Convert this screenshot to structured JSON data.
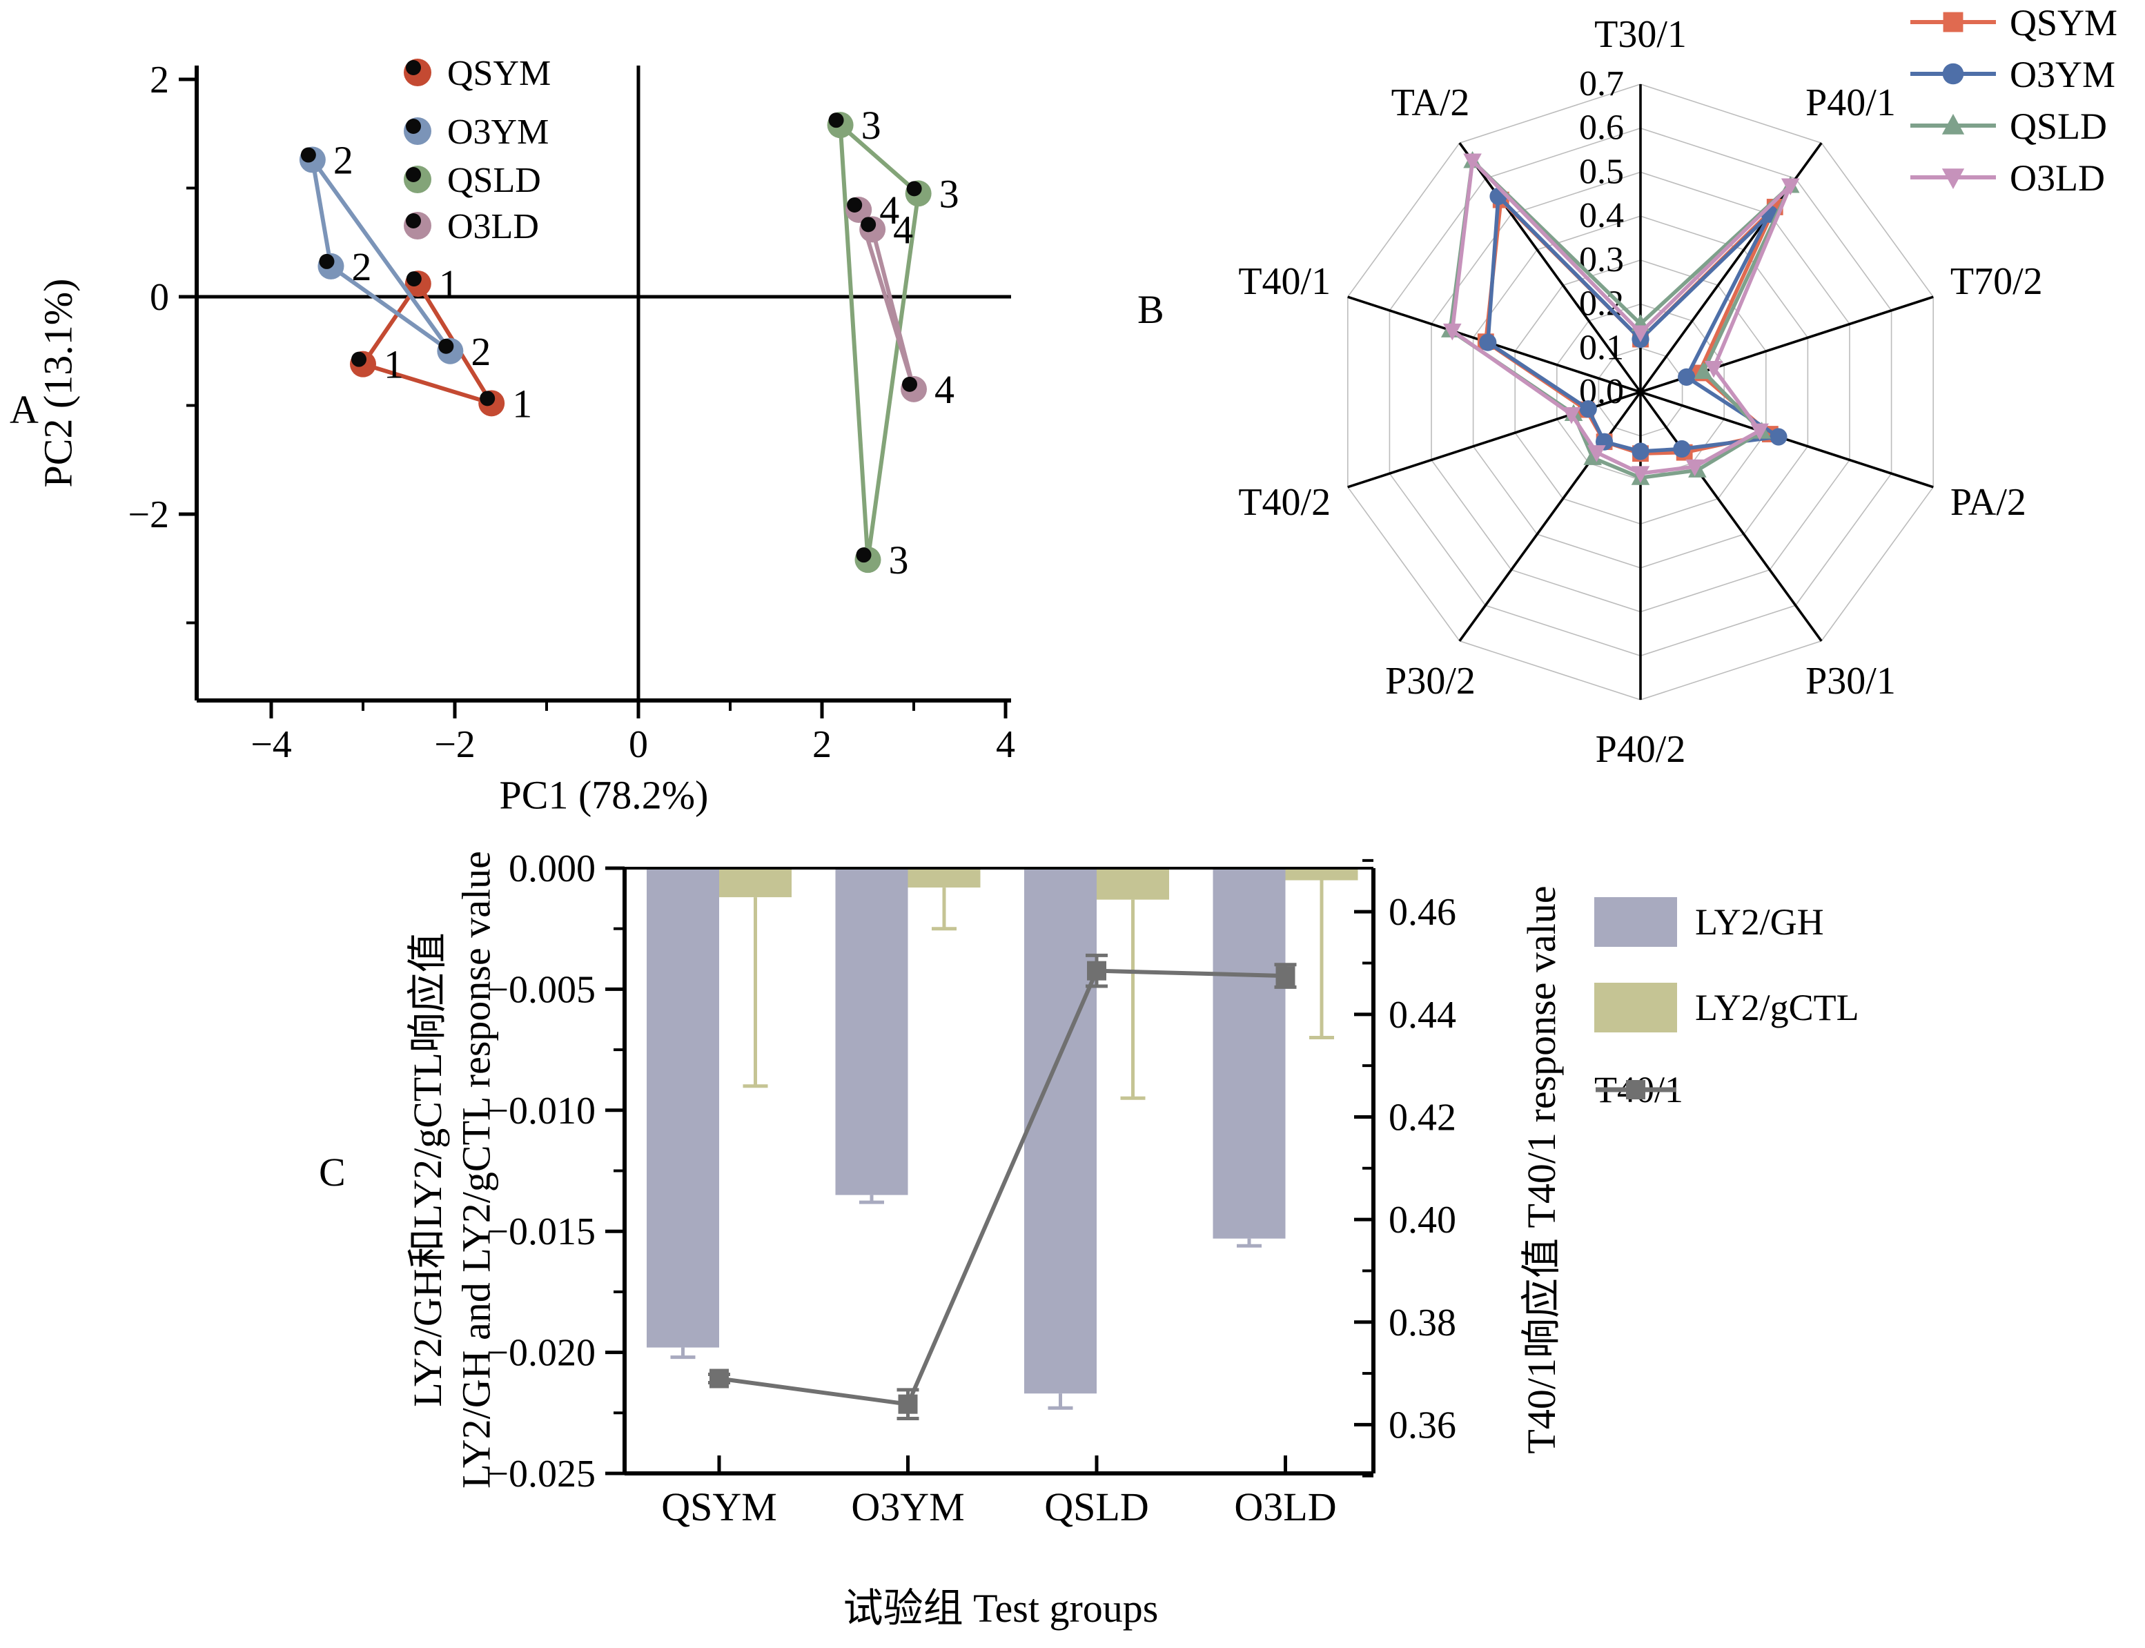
{
  "page": {
    "background": "#ffffff"
  },
  "panel_a": {
    "label": "A",
    "xlabel": "PC1 (78.2%)",
    "ylabel": "PC2 (13.1%)"
  },
  "panel_b": {
    "label": "B"
  },
  "panel_c": {
    "label": "C",
    "xlabel": "试验组 Test groups",
    "ylabel_left_cn": "LY2/GH和LY2/gCTL响应值",
    "ylabel_left_en": "LY2/GH and LY2/gCTL response value",
    "ylabel_right": "T40/1响应值 T40/1 response value"
  },
  "chart_data": [
    {
      "panel": "A",
      "type": "scatter",
      "xlabel": "PC1 (78.2%)",
      "ylabel": "PC2 (13.1%)",
      "xlim": [
        -4.8,
        4.05
      ],
      "ylim": [
        -3.7,
        2.15
      ],
      "xticks": [
        -4,
        -2,
        0,
        2,
        4
      ],
      "xtick_labels": [
        "−4",
        "−2",
        "0",
        "2",
        "4"
      ],
      "xminor": [
        -3,
        -1,
        1,
        3
      ],
      "yticks": [
        2,
        0,
        -2
      ],
      "ytick_labels": [
        "2",
        "0",
        "−2"
      ],
      "yminor": [
        1,
        -1,
        -3
      ],
      "crosshair": {
        "x": 0,
        "y": 0
      },
      "series": [
        {
          "name": "QSYM",
          "color": "#c44a32",
          "point_label": "1",
          "points": [
            [
              -2.4,
              0.12
            ],
            [
              -3.0,
              -0.62
            ],
            [
              -1.6,
              -0.98
            ]
          ]
        },
        {
          "name": "O3YM",
          "color": "#7b94b8",
          "point_label": "2",
          "points": [
            [
              -3.55,
              1.26
            ],
            [
              -3.35,
              0.28
            ],
            [
              -2.05,
              -0.5
            ]
          ]
        },
        {
          "name": "QSLD",
          "color": "#83a478",
          "point_label": "3",
          "points": [
            [
              2.2,
              1.58
            ],
            [
              3.05,
              0.95
            ],
            [
              2.5,
              -2.42
            ]
          ]
        },
        {
          "name": "O3LD",
          "color": "#b28c9e",
          "point_label": "4",
          "points": [
            [
              2.4,
              0.8
            ],
            [
              2.55,
              0.62
            ],
            [
              3.0,
              -0.85
            ]
          ]
        }
      ]
    },
    {
      "panel": "B",
      "type": "radar",
      "axes": [
        "T30/1",
        "P40/1",
        "T70/2",
        "PA/2",
        "P30/1",
        "P40/2",
        "P30/2",
        "T40/2",
        "T40/1",
        "TA/2"
      ],
      "rmax": 0.7,
      "rtick_labels": [
        "0.0",
        "0.1",
        "0.2",
        "0.3",
        "0.4",
        "0.5",
        "0.6",
        "0.7"
      ],
      "grid": "decagon-rings-0.1-steps",
      "legend_position": "top-right",
      "series": [
        {
          "name": "QSYM",
          "color": "#e06a50",
          "marker": "square",
          "values": [
            0.12,
            0.52,
            0.14,
            0.31,
            0.17,
            0.14,
            0.14,
            0.13,
            0.37,
            0.54
          ]
        },
        {
          "name": "O3YM",
          "color": "#4e6fa8",
          "marker": "circle",
          "values": [
            0.12,
            0.5,
            0.11,
            0.33,
            0.16,
            0.135,
            0.14,
            0.125,
            0.365,
            0.55
          ]
        },
        {
          "name": "QSLD",
          "color": "#7ea18b",
          "marker": "triangle-up",
          "values": [
            0.155,
            0.58,
            0.15,
            0.29,
            0.22,
            0.195,
            0.185,
            0.16,
            0.455,
            0.65
          ]
        },
        {
          "name": "O3LD",
          "color": "#c692bb",
          "marker": "triangle-down",
          "values": [
            0.135,
            0.58,
            0.175,
            0.285,
            0.21,
            0.185,
            0.17,
            0.165,
            0.45,
            0.65
          ]
        }
      ]
    },
    {
      "panel": "C",
      "type": "bar-line",
      "categories": [
        "QSYM",
        "O3YM",
        "QSLD",
        "O3LD"
      ],
      "xlabel": "试验组 Test groups",
      "left_axis": {
        "lim": [
          -0.025,
          0
        ],
        "ticks": [
          0,
          -0.005,
          -0.01,
          -0.015,
          -0.02,
          -0.025
        ],
        "tick_labels": [
          "0.000",
          "−0.005",
          "−0.010",
          "−0.015",
          "−0.020",
          "−0.025"
        ]
      },
      "right_axis": {
        "lim": [
          0.3505,
          0.4685
        ],
        "ticks": [
          0.46,
          0.44,
          0.42,
          0.4,
          0.38,
          0.36
        ],
        "tick_labels": [
          "0.46",
          "0.44",
          "0.42",
          "0.40",
          "0.38",
          "0.36"
        ]
      },
      "series": [
        {
          "name": "LY2/GH",
          "type": "bar",
          "color": "#a8aabf",
          "values": [
            -0.0198,
            -0.0135,
            -0.0217,
            -0.0153
          ],
          "errors": [
            0.0004,
            0.0003,
            0.0006,
            0.0003
          ]
        },
        {
          "name": "LY2/gCTL",
          "type": "bar",
          "color": "#c5c494",
          "values": [
            -0.0012,
            -0.0008,
            -0.0013,
            -0.0005
          ],
          "errors": [
            0.0078,
            0.0017,
            0.0082,
            0.0065
          ]
        },
        {
          "name": "T40/1",
          "type": "line",
          "axis": "right",
          "color": "#707070",
          "marker": "square",
          "values": [
            0.369,
            0.364,
            0.4485,
            0.4475
          ],
          "errors": [
            0.0008,
            0.0028,
            0.003,
            0.0022
          ]
        }
      ]
    }
  ]
}
